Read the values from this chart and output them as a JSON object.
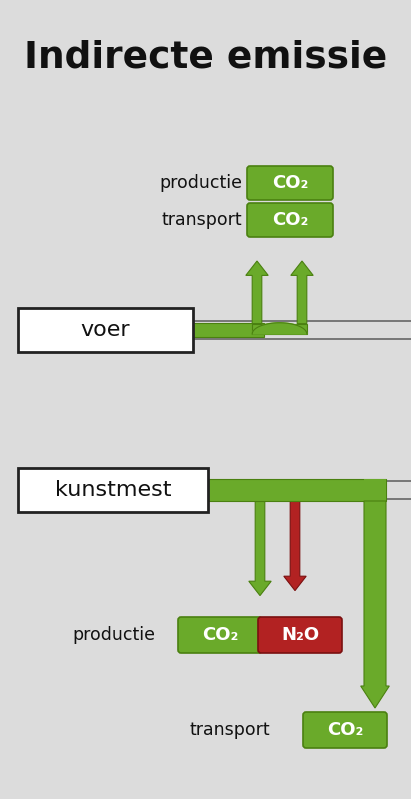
{
  "title": "Indirecte emissie",
  "bg_color": "#dcdcdc",
  "green_color": "#6aaa2a",
  "green_dark": "#4a8010",
  "green_light": "#8ac840",
  "red_color": "#b22222",
  "red_dark": "#7a1010",
  "text_color": "#111111",
  "white": "#ffffff",
  "s1_label_prod": "productie",
  "s1_label_trans": "transport",
  "s1_badge1": "CO₂",
  "s1_badge2": "CO₂",
  "s1_box": "voer",
  "s2_box": "kunstmest",
  "s2_label_prod": "productie",
  "s2_label_trans": "transport",
  "s2_badge_green": "CO₂",
  "s2_badge_red": "N₂O",
  "s2_badge_trans": "CO₂"
}
